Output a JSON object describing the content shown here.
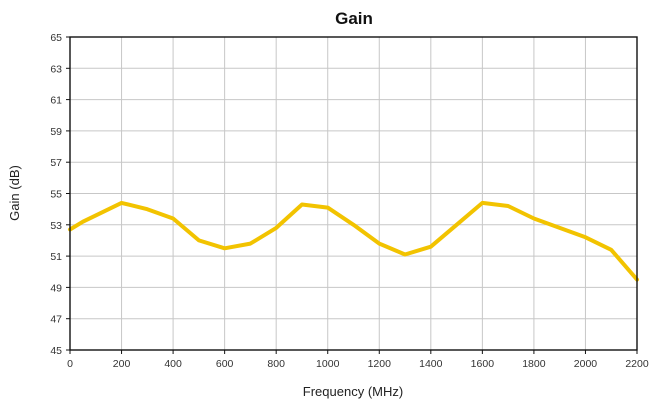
{
  "chart_data": {
    "type": "line",
    "title": "Gain",
    "xlabel": "Frequency (MHz)",
    "ylabel": "Gain (dB)",
    "xlim": [
      0,
      2200
    ],
    "ylim": [
      45,
      65
    ],
    "xticks": [
      0,
      200,
      400,
      600,
      800,
      1000,
      1200,
      1400,
      1600,
      1800,
      2000,
      2200
    ],
    "yticks": [
      45,
      47,
      49,
      51,
      53,
      55,
      57,
      59,
      61,
      63,
      65
    ],
    "grid": true,
    "legend": "none",
    "series": [
      {
        "color": "#f2c300",
        "x": [
          0,
          50,
          100,
          200,
          300,
          400,
          500,
          600,
          700,
          800,
          900,
          1000,
          1100,
          1200,
          1300,
          1400,
          1500,
          1600,
          1700,
          1800,
          1900,
          2000,
          2100,
          2200
        ],
        "y": [
          52.7,
          53.2,
          53.6,
          54.4,
          54.0,
          53.4,
          52.0,
          51.5,
          51.8,
          52.8,
          54.3,
          54.1,
          53.0,
          51.8,
          51.1,
          51.6,
          53.0,
          54.4,
          54.2,
          53.4,
          52.8,
          52.2,
          51.4,
          49.5
        ]
      }
    ]
  }
}
